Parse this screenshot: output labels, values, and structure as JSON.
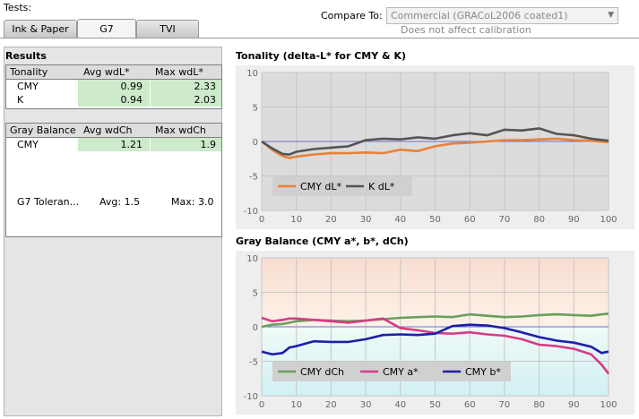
{
  "header": {
    "tests_label": "Tests:",
    "tabs": [
      "Ink & Paper",
      "G7",
      "TVI"
    ],
    "compare_label": "Compare To:",
    "compare_value": "Commercial (GRACoL2006 coated1)",
    "compare_note": "Does not affect calibration"
  },
  "results": {
    "title": "Results",
    "tonality": {
      "headers": [
        "Tonality",
        "Avg wdL*",
        "Max wdL*"
      ],
      "rows": [
        {
          "name": "CMY",
          "avg": "0.99",
          "max": "2.33"
        },
        {
          "name": "K",
          "avg": "0.94",
          "max": "2.03"
        }
      ]
    },
    "gray_balance": {
      "headers": [
        "Gray Balance",
        "Avg wdCh",
        "Max wdCh"
      ],
      "rows": [
        {
          "name": "CMY",
          "avg": "1.21",
          "max": "1.9"
        }
      ]
    },
    "tolerance": {
      "label": "G7 Toleran...",
      "avg": "Avg: 1.5",
      "max": "Max: 3.0"
    }
  },
  "chart_data": [
    {
      "type": "line",
      "title": "Tonality (delta-L* for CMY & K)",
      "xlim": [
        0,
        100
      ],
      "ylim": [
        -10,
        10
      ],
      "x_ticks": [
        0,
        10,
        20,
        30,
        40,
        50,
        60,
        70,
        80,
        90,
        100
      ],
      "y_ticks": [
        10,
        5,
        0,
        -5,
        -10
      ],
      "x": [
        0,
        3,
        6,
        8,
        10,
        15,
        20,
        25,
        30,
        35,
        40,
        45,
        50,
        55,
        60,
        65,
        70,
        75,
        80,
        85,
        90,
        95,
        100
      ],
      "series": [
        {
          "name": "CMY dL*",
          "color": "#e8823a",
          "values": [
            0,
            -1.2,
            -2.1,
            -2.4,
            -2.2,
            -1.9,
            -1.7,
            -1.7,
            -1.6,
            -1.7,
            -1.2,
            -1.4,
            -0.7,
            -0.3,
            -0.2,
            0,
            0.2,
            0.2,
            0.3,
            0.4,
            0.2,
            0.1,
            -0.1
          ]
        },
        {
          "name": "K dL*",
          "color": "#555555",
          "values": [
            0,
            -1.0,
            -1.8,
            -1.9,
            -1.5,
            -1.1,
            -0.9,
            -0.7,
            0.2,
            0.4,
            0.3,
            0.6,
            0.4,
            0.9,
            1.2,
            0.9,
            1.7,
            1.6,
            1.9,
            1.1,
            0.9,
            0.4,
            0.1
          ]
        }
      ],
      "legend": "bottom-left"
    },
    {
      "type": "line",
      "title": "Gray Balance (CMY a*, b*, dCh)",
      "xlim": [
        0,
        100
      ],
      "ylim": [
        -10,
        10
      ],
      "x_ticks": [
        0,
        10,
        20,
        30,
        40,
        50,
        60,
        70,
        80,
        90,
        100
      ],
      "y_ticks": [
        10,
        5,
        0,
        -5,
        -10
      ],
      "x": [
        0,
        3,
        6,
        8,
        10,
        15,
        20,
        25,
        30,
        35,
        40,
        45,
        50,
        55,
        60,
        65,
        70,
        75,
        80,
        85,
        90,
        95,
        98,
        100
      ],
      "series": [
        {
          "name": "CMY dCh",
          "color": "#6a9e5c",
          "values": [
            0,
            0.3,
            0.4,
            0.6,
            0.8,
            1.0,
            0.9,
            0.8,
            0.9,
            1.1,
            1.3,
            1.4,
            1.5,
            1.4,
            1.8,
            1.6,
            1.4,
            1.5,
            1.7,
            1.8,
            1.7,
            1.6,
            1.8,
            1.9
          ]
        },
        {
          "name": "CMY a*",
          "color": "#d93b86",
          "values": [
            1.3,
            0.8,
            1.0,
            1.2,
            1.2,
            1.0,
            0.8,
            0.6,
            0.9,
            1.2,
            -0.2,
            -0.5,
            -0.9,
            -1.0,
            -0.8,
            -1.1,
            -1.3,
            -1.8,
            -2.6,
            -2.8,
            -3.2,
            -4.0,
            -5.5,
            -6.8
          ]
        },
        {
          "name": "CMY b*",
          "color": "#1e1ea8",
          "values": [
            -3.6,
            -4.0,
            -3.8,
            -3.0,
            -2.8,
            -2.1,
            -2.2,
            -2.2,
            -1.8,
            -1.2,
            -1.1,
            -1.2,
            -1.0,
            0.1,
            0.3,
            0.2,
            -0.2,
            -0.8,
            -1.5,
            -2.0,
            -2.3,
            -2.9,
            -3.8,
            -3.6
          ]
        }
      ],
      "legend": "bottom-left"
    }
  ]
}
